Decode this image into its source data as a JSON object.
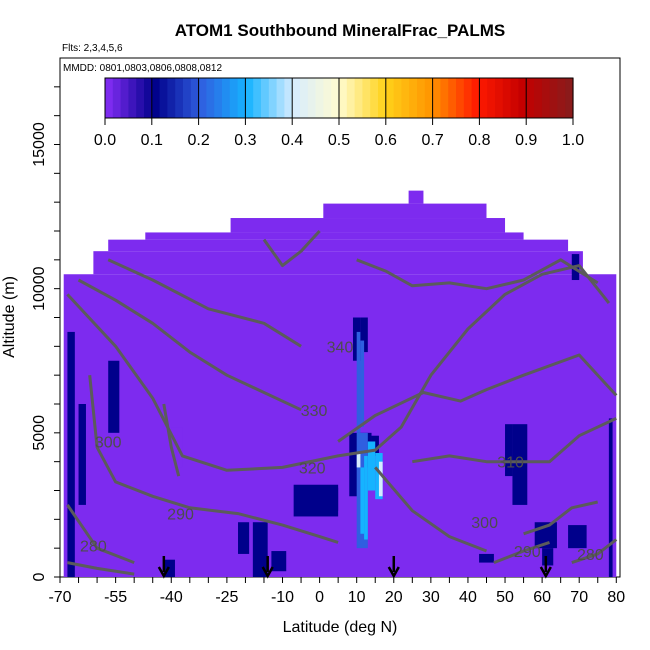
{
  "chart_data": {
    "type": "heatmap",
    "title": "ATOM1 Southbound MineralFrac_PALMS",
    "subtitle_flights": "Flts: 2,3,4,5,6",
    "subtitle_dates": "MMDD: 0801,0803,0806,0808,0812",
    "xlabel": "Latitude (deg N)",
    "ylabel": "Altitude (m)",
    "xlim": [
      -70,
      81
    ],
    "ylim": [
      0,
      18000
    ],
    "x_ticks": [
      -70,
      -55,
      -40,
      -25,
      -10,
      0,
      10,
      20,
      30,
      40,
      50,
      60,
      70,
      80
    ],
    "y_ticks": [
      0,
      5000,
      10000,
      15000
    ],
    "colorbar": {
      "min": 0.0,
      "max": 1.0,
      "ticks": [
        "0.0",
        "0.1",
        "0.2",
        "0.3",
        "0.4",
        "0.5",
        "0.6",
        "0.7",
        "0.8",
        "0.9",
        "1.0"
      ],
      "colors": [
        "#7d2bef",
        "#00008b",
        "#2f5fe0",
        "#16b3ff",
        "#d6ecff",
        "#fffbd0",
        "#ffd21a",
        "#ff9500",
        "#ff1a00",
        "#c40000",
        "#8b1a1a"
      ]
    },
    "arrows_latitude": [
      -42,
      -14,
      20,
      61
    ],
    "contour_labels": [
      {
        "text": "340",
        "x": 5.5,
        "y": 8000
      },
      {
        "text": "330",
        "x": -1.5,
        "y": 5800
      },
      {
        "text": "320",
        "x": -2,
        "y": 3800
      },
      {
        "text": "310",
        "x": 51.5,
        "y": 4000
      },
      {
        "text": "300",
        "x": 44.5,
        "y": 1900
      },
      {
        "text": "300",
        "x": -57,
        "y": 4700
      },
      {
        "text": "290",
        "x": -37.5,
        "y": 2200
      },
      {
        "text": "290",
        "x": 56,
        "y": 900
      },
      {
        "text": "280",
        "x": -61,
        "y": 1100
      },
      {
        "text": "280",
        "x": 73,
        "y": 800
      }
    ],
    "grid": false,
    "legend": "colorbar top"
  }
}
